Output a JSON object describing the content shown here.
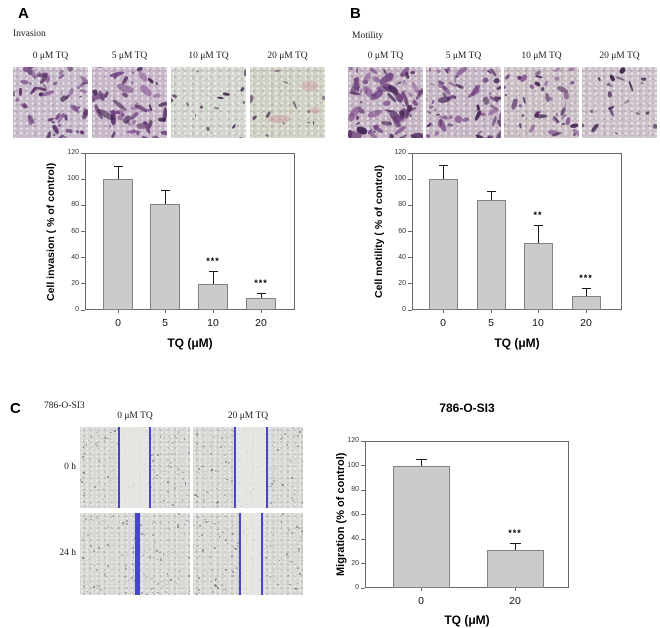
{
  "figure": {
    "panels": {
      "A": {
        "letter": "A",
        "assay": "Invasion",
        "micrographs": [
          "0 μM TQ",
          "5 μM TQ",
          "10 μM TQ",
          "20 μM TQ"
        ]
      },
      "B": {
        "letter": "B",
        "assay": "Motility",
        "micrographs": [
          "0 μM TQ",
          "5 μM TQ",
          "10 μM TQ",
          "20 μM TQ"
        ]
      },
      "C": {
        "letter": "C",
        "cell_line": "786-O-SI3",
        "columns": [
          "0 μM TQ",
          "20 μM TQ"
        ],
        "rows": [
          "0 h",
          "24 h"
        ]
      }
    }
  },
  "chart_data": [
    {
      "id": "invasion",
      "type": "bar",
      "title": "",
      "categories": [
        "0",
        "5",
        "10",
        "20"
      ],
      "values": [
        100,
        81,
        20,
        9
      ],
      "errors": [
        10,
        11,
        10,
        4
      ],
      "significance": [
        "",
        "",
        "***",
        "***"
      ],
      "xlabel": "TQ (μM)",
      "ylabel": "Cell invasion ( % of control)",
      "ylim": [
        0,
        120
      ],
      "yticks": [
        0,
        20,
        40,
        60,
        80,
        100,
        120
      ],
      "grid": false,
      "legend": "none"
    },
    {
      "id": "motility",
      "type": "bar",
      "title": "",
      "categories": [
        "0",
        "5",
        "10",
        "20"
      ],
      "values": [
        100,
        84,
        51,
        11
      ],
      "errors": [
        11,
        7,
        14,
        6
      ],
      "significance": [
        "",
        "",
        "**",
        "***"
      ],
      "xlabel": "TQ (μM)",
      "ylabel": "Cell motility ( % of control)",
      "ylim": [
        0,
        120
      ],
      "yticks": [
        0,
        20,
        40,
        60,
        80,
        100,
        120
      ],
      "grid": false,
      "legend": "none"
    },
    {
      "id": "migration",
      "type": "bar",
      "title": "786-O-SI3",
      "categories": [
        "0",
        "20"
      ],
      "values": [
        100,
        31
      ],
      "errors": [
        5,
        6
      ],
      "significance": [
        "",
        "***"
      ],
      "xlabel": "TQ (μM)",
      "ylabel": "Migration (% of control)",
      "ylim": [
        0,
        120
      ],
      "yticks": [
        0,
        20,
        40,
        60,
        80,
        100,
        120
      ],
      "grid": false,
      "legend": "none"
    }
  ],
  "colors": {
    "bar_fill": "#cccbcb",
    "bar_border": "#828282",
    "axis": "#6a6a6a",
    "wound_line": "#4845c9",
    "stain_purple_dark": "#5a3168",
    "stain_purple_mid": "#744684"
  }
}
